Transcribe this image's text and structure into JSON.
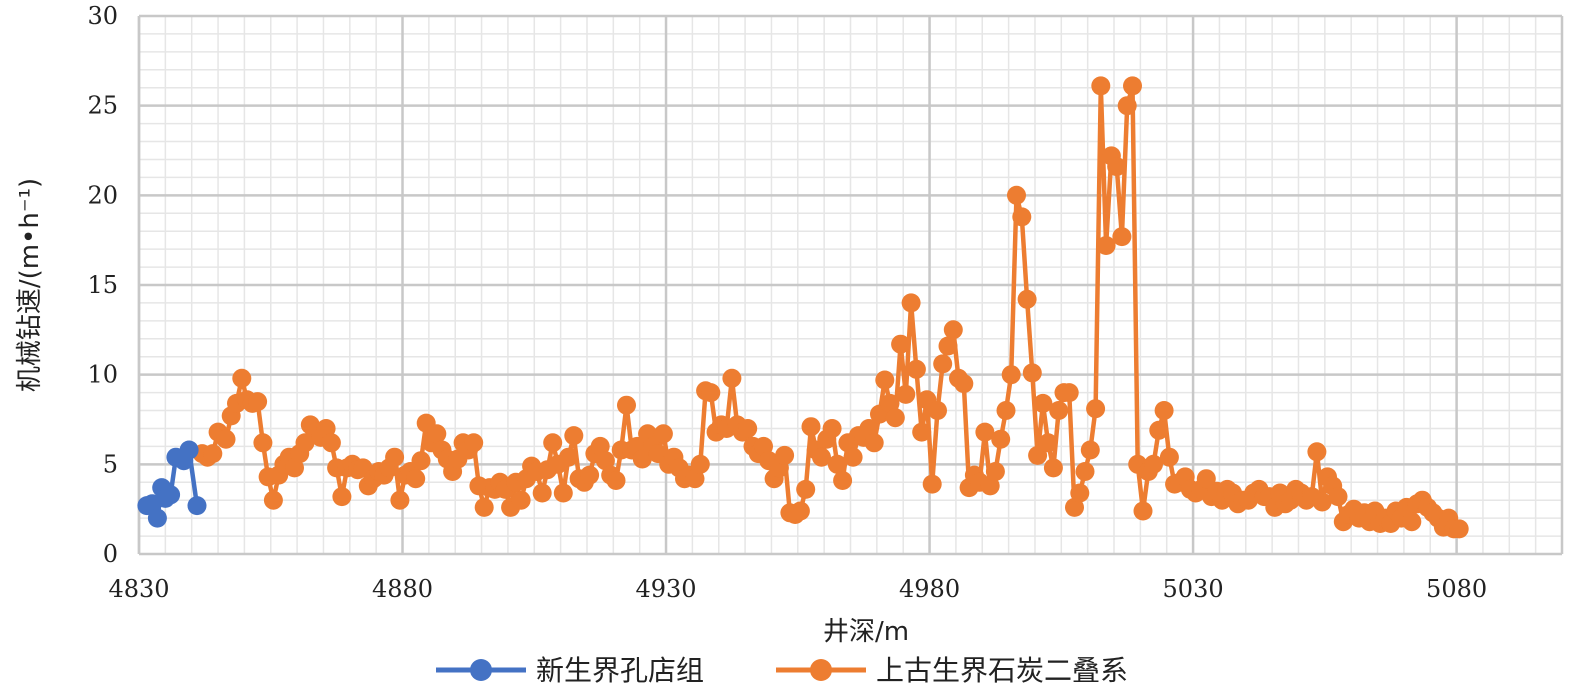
{
  "chart_data": {
    "type": "line",
    "title": "",
    "xlabel": "井深/m",
    "ylabel": "机械钻速/(m•h⁻¹)",
    "xlim": [
      4830,
      5100
    ],
    "ylim": [
      0,
      30
    ],
    "xticks": [
      4830,
      4880,
      4930,
      4980,
      5030,
      5080
    ],
    "yticks": [
      0,
      5,
      10,
      15,
      20,
      25,
      30
    ],
    "grid": true,
    "legend_position": "bottom",
    "series": [
      {
        "name": "新生界孔店组",
        "color": "#4472C4",
        "points": [
          [
            4831.5,
            2.7
          ],
          [
            4832.5,
            2.8
          ],
          [
            4833.5,
            2.0
          ],
          [
            4834.3,
            3.7
          ],
          [
            4835.0,
            3.1
          ],
          [
            4836.0,
            3.3
          ],
          [
            4837.0,
            5.4
          ],
          [
            4838.5,
            5.2
          ],
          [
            4839.5,
            5.8
          ],
          [
            4841.0,
            2.7
          ]
        ]
      },
      {
        "name": "上古生界石炭二叠系",
        "color": "#ED7D31",
        "points": [
          [
            4842,
            5.6
          ],
          [
            4843,
            5.4
          ],
          [
            4844,
            5.6
          ],
          [
            4845,
            6.8
          ],
          [
            4846.5,
            6.4
          ],
          [
            4847.5,
            7.7
          ],
          [
            4848.5,
            8.4
          ],
          [
            4849.5,
            9.8
          ],
          [
            4850.5,
            8.6
          ],
          [
            4851.5,
            8.4
          ],
          [
            4852.5,
            8.5
          ],
          [
            4853.5,
            6.2
          ],
          [
            4854.5,
            4.3
          ],
          [
            4855.5,
            3.0
          ],
          [
            4856.5,
            4.4
          ],
          [
            4857.5,
            5.0
          ],
          [
            4858.5,
            5.4
          ],
          [
            4859.5,
            4.8
          ],
          [
            4860.5,
            5.6
          ],
          [
            4861.5,
            6.2
          ],
          [
            4862.5,
            7.2
          ],
          [
            4863.5,
            6.8
          ],
          [
            4864.5,
            6.5
          ],
          [
            4865.5,
            7.0
          ],
          [
            4866.5,
            6.2
          ],
          [
            4867.5,
            4.8
          ],
          [
            4868.5,
            3.2
          ],
          [
            4869.5,
            4.8
          ],
          [
            4870.5,
            5.0
          ],
          [
            4871.5,
            4.7
          ],
          [
            4872.5,
            4.8
          ],
          [
            4873.5,
            3.8
          ],
          [
            4874.5,
            4.2
          ],
          [
            4875.5,
            4.6
          ],
          [
            4876.5,
            4.4
          ],
          [
            4877.5,
            4.8
          ],
          [
            4878.5,
            5.4
          ],
          [
            4879.5,
            3.0
          ],
          [
            4880.5,
            4.4
          ],
          [
            4881.5,
            4.6
          ],
          [
            4882.5,
            4.2
          ],
          [
            4883.5,
            5.2
          ],
          [
            4884.5,
            7.3
          ],
          [
            4885.5,
            6.2
          ],
          [
            4886.5,
            6.7
          ],
          [
            4887.5,
            5.8
          ],
          [
            4888.5,
            5.3
          ],
          [
            4889.5,
            4.6
          ],
          [
            4890.5,
            5.3
          ],
          [
            4891.5,
            6.2
          ],
          [
            4892.5,
            5.8
          ],
          [
            4893.5,
            6.2
          ],
          [
            4894.5,
            3.8
          ],
          [
            4895.5,
            2.6
          ],
          [
            4896.5,
            3.7
          ],
          [
            4897.5,
            3.6
          ],
          [
            4898.5,
            4.0
          ],
          [
            4899.5,
            3.6
          ],
          [
            4900.5,
            2.6
          ],
          [
            4901.5,
            4.0
          ],
          [
            4902.5,
            3.0
          ],
          [
            4903.5,
            4.2
          ],
          [
            4904.5,
            4.9
          ],
          [
            4905.5,
            4.6
          ],
          [
            4906.5,
            3.4
          ],
          [
            4907.5,
            4.7
          ],
          [
            4908.5,
            6.2
          ],
          [
            4909.5,
            5.0
          ],
          [
            4910.5,
            3.4
          ],
          [
            4911.5,
            5.4
          ],
          [
            4912.5,
            6.6
          ],
          [
            4913.5,
            4.2
          ],
          [
            4914.5,
            4.0
          ],
          [
            4915.5,
            4.4
          ],
          [
            4916.5,
            5.6
          ],
          [
            4917.5,
            6.0
          ],
          [
            4918.5,
            5.2
          ],
          [
            4919.5,
            4.4
          ],
          [
            4920.5,
            4.1
          ],
          [
            4921.5,
            5.8
          ],
          [
            4922.5,
            8.3
          ],
          [
            4923.5,
            5.8
          ],
          [
            4924.5,
            6.0
          ],
          [
            4925.5,
            5.3
          ],
          [
            4926.5,
            6.7
          ],
          [
            4927.5,
            6.0
          ],
          [
            4928.5,
            5.6
          ],
          [
            4929.5,
            6.7
          ],
          [
            4930.5,
            5.0
          ],
          [
            4931.5,
            5.4
          ],
          [
            4932.5,
            4.8
          ],
          [
            4933.5,
            4.2
          ],
          [
            4934.5,
            4.4
          ],
          [
            4935.5,
            4.2
          ],
          [
            4936.5,
            5.0
          ],
          [
            4937.5,
            9.1
          ],
          [
            4938.5,
            9.0
          ],
          [
            4939.5,
            6.8
          ],
          [
            4940.5,
            7.2
          ],
          [
            4941.5,
            7.0
          ],
          [
            4942.5,
            9.8
          ],
          [
            4943.5,
            7.2
          ],
          [
            4944.5,
            6.8
          ],
          [
            4945.5,
            7.0
          ],
          [
            4946.5,
            6.0
          ],
          [
            4947.5,
            5.6
          ],
          [
            4948.5,
            6.0
          ],
          [
            4949.5,
            5.2
          ],
          [
            4950.5,
            4.2
          ],
          [
            4951.5,
            4.8
          ],
          [
            4952.5,
            5.5
          ],
          [
            4953.5,
            2.3
          ],
          [
            4954.5,
            2.2
          ],
          [
            4955.5,
            2.4
          ],
          [
            4956.5,
            3.6
          ],
          [
            4957.5,
            7.1
          ],
          [
            4958.5,
            5.8
          ],
          [
            4959.5,
            5.4
          ],
          [
            4960.5,
            6.4
          ],
          [
            4961.5,
            7.0
          ],
          [
            4962.5,
            5.0
          ],
          [
            4963.5,
            4.1
          ],
          [
            4964.5,
            6.2
          ],
          [
            4965.5,
            5.4
          ],
          [
            4966.5,
            6.6
          ],
          [
            4967.5,
            6.5
          ],
          [
            4968.5,
            7.0
          ],
          [
            4969.5,
            6.2
          ],
          [
            4970.5,
            7.8
          ],
          [
            4971.5,
            9.7
          ],
          [
            4972.5,
            8.4
          ],
          [
            4973.5,
            7.6
          ],
          [
            4974.5,
            11.7
          ],
          [
            4975.5,
            8.9
          ],
          [
            4976.5,
            14.0
          ],
          [
            4977.5,
            10.3
          ],
          [
            4978.5,
            6.8
          ],
          [
            4979.5,
            8.6
          ],
          [
            4980.5,
            3.9
          ],
          [
            4981.5,
            8.0
          ],
          [
            4982.5,
            10.6
          ],
          [
            4983.5,
            11.6
          ],
          [
            4984.5,
            12.5
          ],
          [
            4985.5,
            9.8
          ],
          [
            4986.5,
            9.5
          ],
          [
            4987.5,
            3.7
          ],
          [
            4988.5,
            4.4
          ],
          [
            4989.5,
            4.0
          ],
          [
            4990.5,
            6.8
          ],
          [
            4991.5,
            3.8
          ],
          [
            4992.5,
            4.6
          ],
          [
            4993.5,
            6.4
          ],
          [
            4994.5,
            8.0
          ],
          [
            4995.5,
            10.0
          ],
          [
            4996.5,
            20.0
          ],
          [
            4997.5,
            18.8
          ],
          [
            4998.5,
            14.2
          ],
          [
            4999.5,
            10.1
          ],
          [
            5000.5,
            5.5
          ],
          [
            5001.5,
            8.4
          ],
          [
            5002.5,
            6.2
          ],
          [
            5003.5,
            4.8
          ],
          [
            5004.5,
            8.0
          ],
          [
            5005.5,
            9.0
          ],
          [
            5006.5,
            9.0
          ],
          [
            5007.5,
            2.6
          ],
          [
            5008.5,
            3.4
          ],
          [
            5009.5,
            4.6
          ],
          [
            5010.5,
            5.8
          ],
          [
            5011.5,
            8.1
          ],
          [
            5012.5,
            26.1
          ],
          [
            5013.5,
            17.2
          ],
          [
            5014.5,
            22.2
          ],
          [
            5015.5,
            21.6
          ],
          [
            5016.5,
            17.7
          ],
          [
            5017.5,
            25.0
          ],
          [
            5018.5,
            26.1
          ],
          [
            5019.5,
            5.0
          ],
          [
            5020.5,
            2.4
          ],
          [
            5021.5,
            4.6
          ],
          [
            5022.5,
            5.0
          ],
          [
            5023.5,
            6.9
          ],
          [
            5024.5,
            8.0
          ],
          [
            5025.5,
            5.4
          ],
          [
            5026.5,
            3.9
          ],
          [
            5027.5,
            4.0
          ],
          [
            5028.5,
            4.3
          ],
          [
            5029.5,
            3.6
          ],
          [
            5030.5,
            3.4
          ],
          [
            5031.5,
            3.6
          ],
          [
            5032.5,
            4.2
          ],
          [
            5033.5,
            3.2
          ],
          [
            5034.5,
            3.5
          ],
          [
            5035.5,
            3.0
          ],
          [
            5036.5,
            3.6
          ],
          [
            5037.5,
            3.4
          ],
          [
            5038.5,
            2.8
          ],
          [
            5039.5,
            3.0
          ],
          [
            5040.5,
            3.0
          ],
          [
            5041.5,
            3.4
          ],
          [
            5042.5,
            3.6
          ],
          [
            5043.5,
            3.2
          ],
          [
            5044.5,
            3.2
          ],
          [
            5045.5,
            2.6
          ],
          [
            5046.5,
            3.4
          ],
          [
            5047.5,
            2.8
          ],
          [
            5048.5,
            3.0
          ],
          [
            5049.5,
            3.6
          ],
          [
            5050.5,
            3.4
          ],
          [
            5051.5,
            3.0
          ],
          [
            5052.5,
            3.2
          ],
          [
            5053.5,
            5.7
          ],
          [
            5054.5,
            2.9
          ],
          [
            5055.5,
            4.3
          ],
          [
            5056.5,
            3.8
          ],
          [
            5057.5,
            3.2
          ],
          [
            5058.5,
            1.8
          ],
          [
            5059.5,
            2.2
          ],
          [
            5060.5,
            2.5
          ],
          [
            5061.5,
            2.0
          ],
          [
            5062.5,
            2.3
          ],
          [
            5063.5,
            1.8
          ],
          [
            5064.5,
            2.4
          ],
          [
            5065.5,
            1.7
          ],
          [
            5066.5,
            2.0
          ],
          [
            5067.5,
            1.7
          ],
          [
            5068.5,
            2.4
          ],
          [
            5069.5,
            2.0
          ],
          [
            5070.5,
            2.6
          ],
          [
            5071.5,
            1.8
          ],
          [
            5072.5,
            2.8
          ],
          [
            5073.5,
            3.0
          ],
          [
            5074.5,
            2.6
          ],
          [
            5075.5,
            2.3
          ],
          [
            5076.5,
            2.0
          ],
          [
            5077.5,
            1.5
          ],
          [
            5078.5,
            2.0
          ],
          [
            5079.5,
            1.4
          ],
          [
            5080.5,
            1.4
          ]
        ]
      }
    ]
  }
}
